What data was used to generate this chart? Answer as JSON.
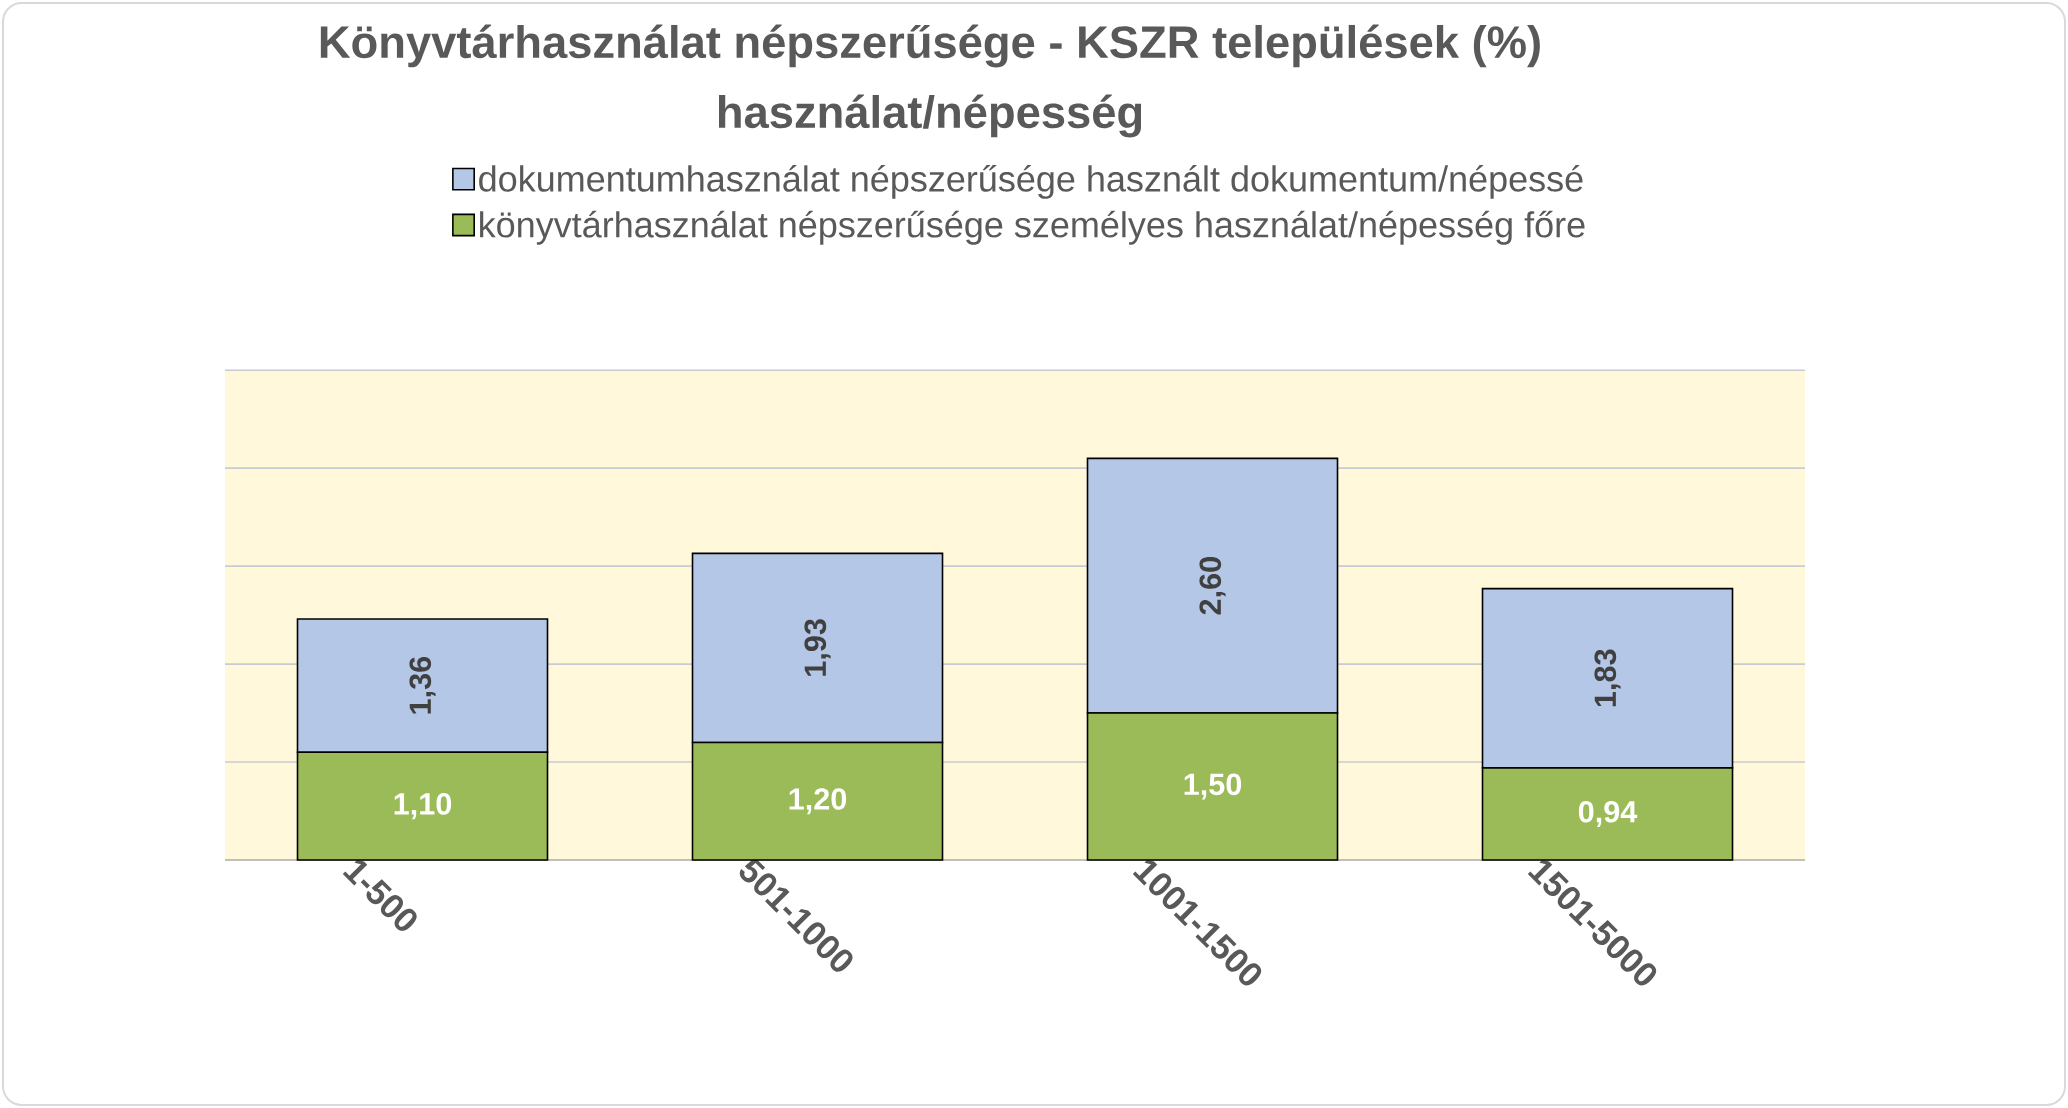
{
  "chart_data": {
    "type": "bar",
    "title": "Könyvtárhasználat népszerűsége - KSZR települések (%)",
    "subtitle": "használat/népesség",
    "categories": [
      "1-500",
      "501-1000",
      "1001-1500",
      "1501-5000"
    ],
    "stacked": true,
    "series": [
      {
        "name": "könyvtárhasználat népszerűsége személyes használat/népesség főre",
        "color": "#9bbb59",
        "values": [
          1.1,
          1.2,
          1.5,
          0.94
        ],
        "value_labels": [
          "1,10",
          "1,20",
          "1,50",
          "0,94"
        ]
      },
      {
        "name": "dokumentumhasználat népszerűsége használt dokumentum/népessé",
        "color": "#b4c7e7",
        "values": [
          1.36,
          1.93,
          2.6,
          1.83
        ],
        "value_labels": [
          "1,36",
          "1,93",
          "2,60",
          "1,83"
        ]
      }
    ],
    "grid": "y",
    "legend": "top",
    "tick_labels": "x"
  }
}
